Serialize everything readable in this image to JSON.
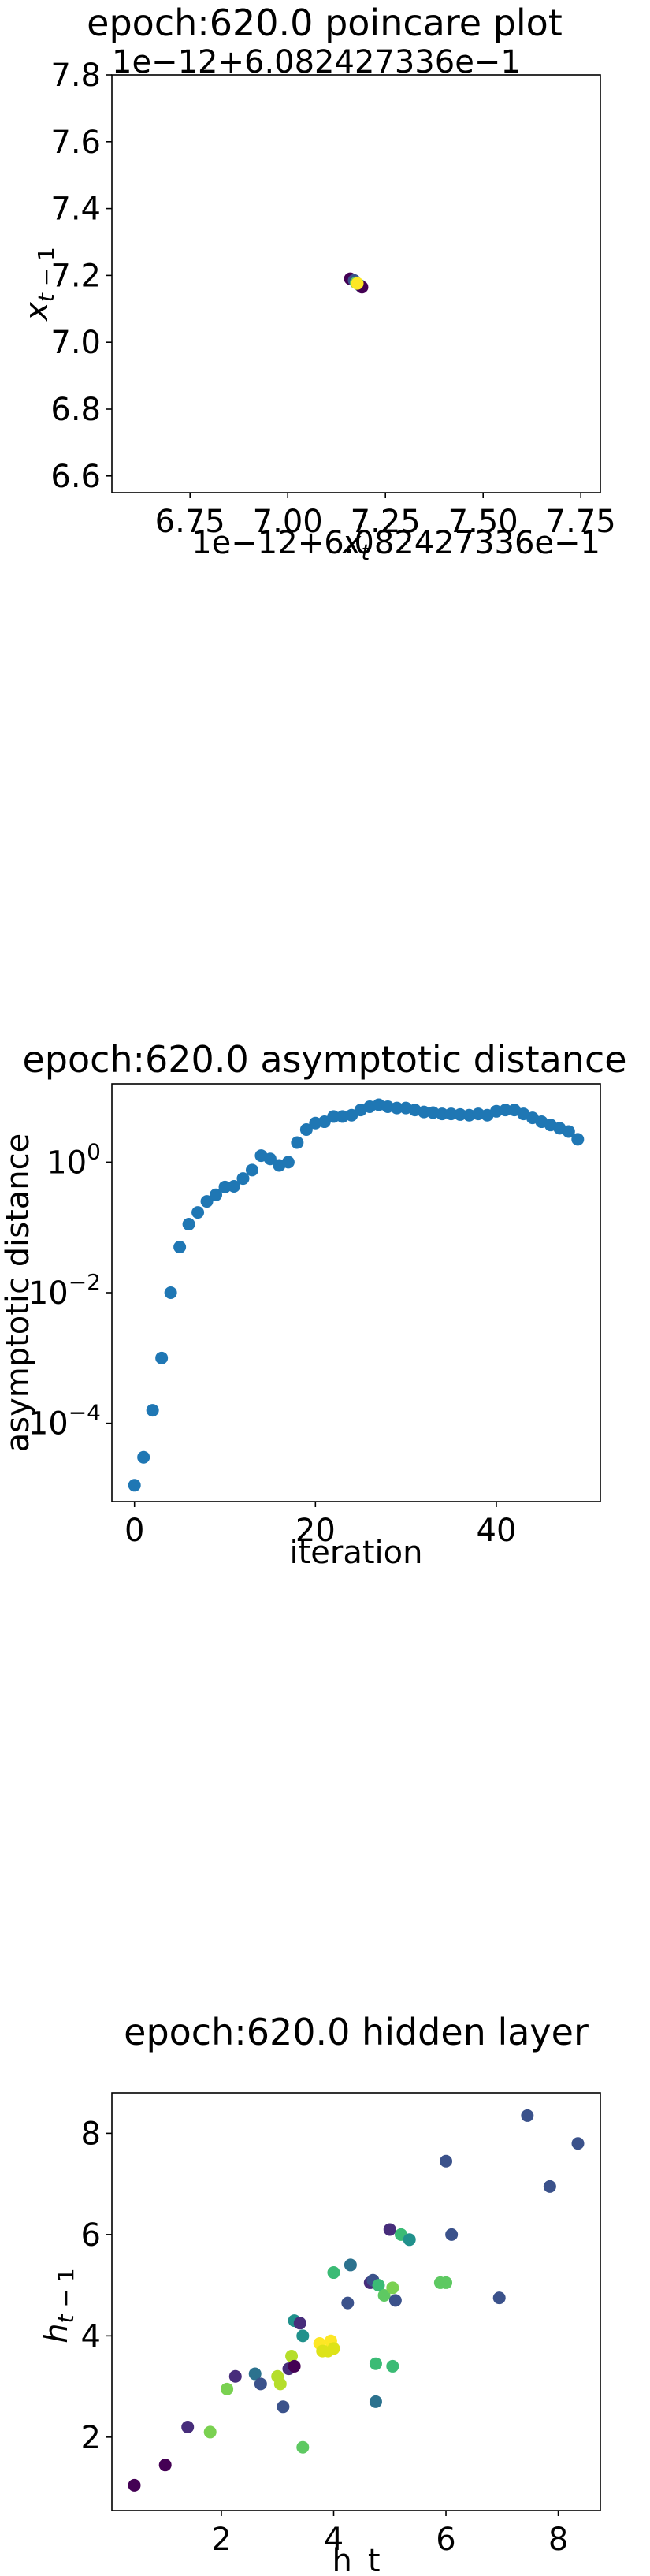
{
  "chart_data": [
    {
      "type": "scatter",
      "title": "epoch:620.0 poincare plot",
      "xlabel": "x_t",
      "ylabel": "x_{t-1}",
      "x_offset_label": "1e−12+6.082427336e−1",
      "y_offset_label": "1e−12+6.082427336e−1",
      "xlim": [
        6.55,
        7.8
      ],
      "ylim": [
        6.55,
        7.8
      ],
      "xticks": [
        6.75,
        7.0,
        7.25,
        7.5,
        7.75
      ],
      "xtick_labels": [
        "6.75",
        "7.00",
        "7.25",
        "7.50",
        "7.75"
      ],
      "yticks": [
        6.6,
        6.8,
        7.0,
        7.2,
        7.4,
        7.6,
        7.8
      ],
      "ytick_labels": [
        "6.6",
        "6.8",
        "7.0",
        "7.2",
        "7.4",
        "7.6",
        "7.8"
      ],
      "points": [
        {
          "x": 7.16,
          "y": 7.19,
          "color": "#440154"
        },
        {
          "x": 7.17,
          "y": 7.185,
          "color": "#3b528b"
        },
        {
          "x": 7.185,
          "y": 7.17,
          "color": "#21918c"
        },
        {
          "x": 7.19,
          "y": 7.165,
          "color": "#440154"
        },
        {
          "x": 7.175,
          "y": 7.178,
          "color": "#5ec962"
        },
        {
          "x": 7.178,
          "y": 7.176,
          "color": "#fde725"
        }
      ],
      "grid": false
    },
    {
      "type": "scatter",
      "title": "epoch:620.0 asymptotic distance",
      "xlabel": "iteration",
      "ylabel": "asymptotic distance",
      "yscale": "log",
      "xlim": [
        -2.5,
        51.5
      ],
      "ylim_log10": [
        -5.2,
        1.2
      ],
      "xticks": [
        0,
        20,
        40
      ],
      "xtick_labels": [
        "0",
        "20",
        "40"
      ],
      "yticks_log10": [
        -4,
        -2,
        0
      ],
      "ytick_labels": [
        [
          "10",
          "−4"
        ],
        [
          "10",
          "−2"
        ],
        [
          "10",
          "0"
        ]
      ],
      "color": "#1f77b4",
      "x": [
        0,
        1,
        2,
        3,
        4,
        5,
        6,
        7,
        8,
        9,
        10,
        11,
        12,
        13,
        14,
        15,
        16,
        17,
        18,
        19,
        20,
        21,
        22,
        23,
        24,
        25,
        26,
        27,
        28,
        29,
        30,
        31,
        32,
        33,
        34,
        35,
        36,
        37,
        38,
        39,
        40,
        41,
        42,
        43,
        44,
        45,
        46,
        47,
        48,
        49
      ],
      "y_log10": [
        -4.95,
        -4.52,
        -3.8,
        -3.0,
        -2.0,
        -1.3,
        -0.95,
        -0.77,
        -0.6,
        -0.5,
        -0.38,
        -0.37,
        -0.25,
        -0.12,
        0.1,
        0.05,
        -0.05,
        0.0,
        0.3,
        0.5,
        0.6,
        0.62,
        0.7,
        0.7,
        0.72,
        0.8,
        0.85,
        0.88,
        0.85,
        0.83,
        0.83,
        0.8,
        0.77,
        0.76,
        0.74,
        0.74,
        0.73,
        0.72,
        0.74,
        0.72,
        0.78,
        0.8,
        0.8,
        0.74,
        0.68,
        0.62,
        0.57,
        0.52,
        0.47,
        0.35
      ],
      "grid": false
    },
    {
      "type": "scatter",
      "title": "epoch:620.0 hidden layer",
      "xlabel": "h_t",
      "ylabel": "h_{t-1}",
      "xlim": [
        0.05,
        8.75
      ],
      "ylim": [
        0.55,
        8.8
      ],
      "xticks": [
        2,
        4,
        6,
        8
      ],
      "xtick_labels": [
        "2",
        "4",
        "6",
        "8"
      ],
      "yticks": [
        2,
        4,
        6,
        8
      ],
      "ytick_labels": [
        "2",
        "4",
        "6",
        "8"
      ],
      "points": [
        {
          "x": 0.45,
          "y": 1.05,
          "color": "#440154"
        },
        {
          "x": 1.0,
          "y": 1.45,
          "color": "#440154"
        },
        {
          "x": 1.4,
          "y": 2.2,
          "color": "#472d7b"
        },
        {
          "x": 1.8,
          "y": 2.1,
          "color": "#7ad151"
        },
        {
          "x": 2.1,
          "y": 2.95,
          "color": "#7ad151"
        },
        {
          "x": 2.25,
          "y": 3.2,
          "color": "#472d7b"
        },
        {
          "x": 2.6,
          "y": 3.25,
          "color": "#2c728e"
        },
        {
          "x": 2.7,
          "y": 3.05,
          "color": "#3b528b"
        },
        {
          "x": 3.0,
          "y": 3.2,
          "color": "#b5de2b"
        },
        {
          "x": 3.05,
          "y": 3.05,
          "color": "#b5de2b"
        },
        {
          "x": 3.1,
          "y": 2.6,
          "color": "#3b528b"
        },
        {
          "x": 3.2,
          "y": 3.35,
          "color": "#472d7b"
        },
        {
          "x": 3.25,
          "y": 3.6,
          "color": "#b5de2b"
        },
        {
          "x": 3.3,
          "y": 3.4,
          "color": "#440154"
        },
        {
          "x": 3.3,
          "y": 4.3,
          "color": "#21918c"
        },
        {
          "x": 3.4,
          "y": 4.25,
          "color": "#472d7b"
        },
        {
          "x": 3.45,
          "y": 4.0,
          "color": "#21918c"
        },
        {
          "x": 3.45,
          "y": 1.8,
          "color": "#5ec962"
        },
        {
          "x": 3.75,
          "y": 3.85,
          "color": "#fde725"
        },
        {
          "x": 3.8,
          "y": 3.7,
          "color": "#dde318"
        },
        {
          "x": 3.9,
          "y": 3.7,
          "color": "#dde318"
        },
        {
          "x": 3.95,
          "y": 3.9,
          "color": "#fde725"
        },
        {
          "x": 4.0,
          "y": 3.75,
          "color": "#dde318"
        },
        {
          "x": 4.0,
          "y": 5.25,
          "color": "#3bbb75"
        },
        {
          "x": 4.25,
          "y": 4.65,
          "color": "#3b528b"
        },
        {
          "x": 4.3,
          "y": 5.4,
          "color": "#2c728e"
        },
        {
          "x": 4.65,
          "y": 5.05,
          "color": "#472d7b"
        },
        {
          "x": 4.7,
          "y": 5.1,
          "color": "#3b528b"
        },
        {
          "x": 4.75,
          "y": 3.45,
          "color": "#3bbb75"
        },
        {
          "x": 4.75,
          "y": 2.7,
          "color": "#2c728e"
        },
        {
          "x": 4.8,
          "y": 5.0,
          "color": "#3bbb75"
        },
        {
          "x": 4.9,
          "y": 4.8,
          "color": "#5ec962"
        },
        {
          "x": 5.0,
          "y": 6.1,
          "color": "#472d7b"
        },
        {
          "x": 5.05,
          "y": 3.4,
          "color": "#3bbb75"
        },
        {
          "x": 5.05,
          "y": 4.95,
          "color": "#7ad151"
        },
        {
          "x": 5.1,
          "y": 4.7,
          "color": "#3b528b"
        },
        {
          "x": 5.2,
          "y": 6.0,
          "color": "#3bbb75"
        },
        {
          "x": 5.35,
          "y": 5.9,
          "color": "#21918c"
        },
        {
          "x": 5.9,
          "y": 5.05,
          "color": "#5ec962"
        },
        {
          "x": 6.0,
          "y": 5.05,
          "color": "#5ec962"
        },
        {
          "x": 6.0,
          "y": 7.45,
          "color": "#3b528b"
        },
        {
          "x": 6.1,
          "y": 6.0,
          "color": "#3b528b"
        },
        {
          "x": 6.95,
          "y": 4.75,
          "color": "#3b528b"
        },
        {
          "x": 7.45,
          "y": 8.35,
          "color": "#3b528b"
        },
        {
          "x": 7.85,
          "y": 6.95,
          "color": "#3b528b"
        },
        {
          "x": 8.35,
          "y": 7.8,
          "color": "#3b528b"
        }
      ],
      "grid": false
    }
  ]
}
